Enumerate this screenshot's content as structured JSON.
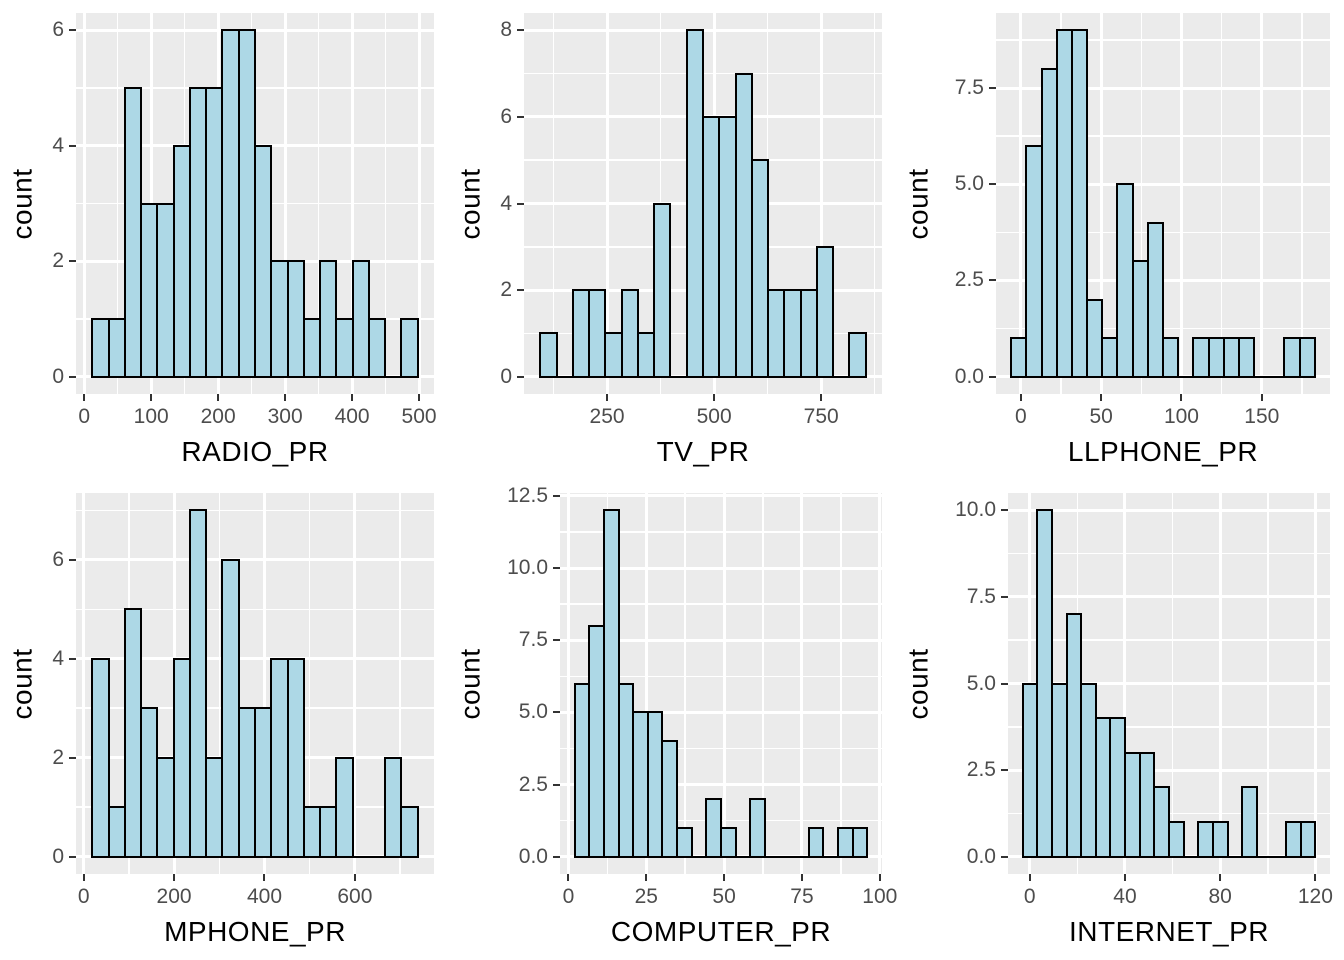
{
  "figure": {
    "ylabel": "count",
    "layout": {
      "rows": 2,
      "cols": 3
    },
    "colors": {
      "bar_fill": "#ADD8E6",
      "bar_stroke": "#000000",
      "panel_background": "#EBEBEB",
      "grid_line": "#FFFFFF",
      "tick_mark": "#333333",
      "tick_label": "#4D4D4D",
      "axis_title": "#000000",
      "page_background": "#FFFFFF"
    }
  },
  "chart_data": [
    {
      "type": "bar",
      "subtype": "histogram",
      "xlabel": "RADIO_PR",
      "ylabel": "count",
      "bin_start": 12,
      "bin_width": 24.3,
      "counts": [
        1,
        1,
        5,
        3,
        3,
        4,
        5,
        5,
        6,
        6,
        4,
        2,
        2,
        1,
        2,
        1,
        2,
        1,
        0,
        1
      ],
      "x_domain": [
        -12.3,
        522.3
      ],
      "y_domain": [
        -0.3,
        6.3
      ],
      "x_tick_values": [
        0,
        100,
        200,
        300,
        400,
        500
      ],
      "x_tick_labels": [
        "0",
        "100",
        "200",
        "300",
        "400",
        "500"
      ],
      "x_minor": [
        50,
        150,
        250,
        350,
        450
      ],
      "y_tick_values": [
        0,
        2,
        4,
        6
      ],
      "y_tick_labels": [
        "0",
        "2",
        "4",
        "6"
      ],
      "y_minor": [
        1,
        3,
        5
      ],
      "grid": true,
      "legend": false
    },
    {
      "type": "bar",
      "subtype": "histogram",
      "xlabel": "TV_PR",
      "ylabel": "count",
      "bin_start": 94,
      "bin_width": 38,
      "counts": [
        1,
        0,
        2,
        2,
        1,
        2,
        1,
        4,
        0,
        8,
        6,
        6,
        7,
        5,
        2,
        2,
        2,
        3,
        0,
        1
      ],
      "x_domain": [
        56,
        892
      ],
      "y_domain": [
        -0.4,
        8.4
      ],
      "x_tick_values": [
        250,
        500,
        750
      ],
      "x_tick_labels": [
        "250",
        "500",
        "750"
      ],
      "x_minor": [
        125,
        375,
        625,
        875
      ],
      "y_tick_values": [
        0,
        2,
        4,
        6,
        8
      ],
      "y_tick_labels": [
        "0",
        "2",
        "4",
        "6",
        "8"
      ],
      "y_minor": [
        1,
        3,
        5,
        7
      ],
      "grid": true,
      "legend": false
    },
    {
      "type": "bar",
      "subtype": "histogram",
      "xlabel": "LLPHONE_PR",
      "ylabel": "count",
      "bin_start": -6,
      "bin_width": 9.45,
      "counts": [
        1,
        6,
        8,
        9,
        9,
        2,
        1,
        5,
        3,
        4,
        1,
        0,
        1,
        1,
        1,
        1,
        0,
        0,
        1,
        1
      ],
      "x_domain": [
        -15.45,
        192.45
      ],
      "y_domain": [
        -0.45,
        9.45
      ],
      "x_tick_values": [
        0,
        50,
        100,
        150
      ],
      "x_tick_labels": [
        "0",
        "50",
        "100",
        "150"
      ],
      "x_minor": [
        25,
        75,
        125,
        175
      ],
      "y_tick_values": [
        0,
        2.5,
        5,
        7.5
      ],
      "y_tick_labels": [
        "0.0",
        "2.5",
        "5.0",
        "7.5"
      ],
      "y_minor": [
        1.25,
        3.75,
        6.25,
        8.75
      ],
      "grid": true,
      "legend": false
    },
    {
      "type": "bar",
      "subtype": "histogram",
      "xlabel": "MPHONE_PR",
      "ylabel": "count",
      "bin_start": 19,
      "bin_width": 36,
      "counts": [
        4,
        1,
        5,
        3,
        2,
        4,
        7,
        2,
        6,
        3,
        3,
        4,
        4,
        1,
        1,
        2,
        0,
        0,
        2,
        1
      ],
      "x_domain": [
        -17,
        775
      ],
      "y_domain": [
        -0.35,
        7.35
      ],
      "x_tick_values": [
        0,
        200,
        400,
        600
      ],
      "x_tick_labels": [
        "0",
        "200",
        "400",
        "600"
      ],
      "x_minor": [
        100,
        300,
        500,
        700
      ],
      "y_tick_values": [
        0,
        2,
        4,
        6
      ],
      "y_tick_labels": [
        "0",
        "2",
        "4",
        "6"
      ],
      "y_minor": [
        1,
        3,
        5,
        7
      ],
      "grid": true,
      "legend": false
    },
    {
      "type": "bar",
      "subtype": "histogram",
      "xlabel": "COMPUTER_PR",
      "ylabel": "count",
      "bin_start": 2,
      "bin_width": 4.7,
      "counts": [
        6,
        8,
        12,
        6,
        5,
        5,
        4,
        1,
        0,
        2,
        1,
        0,
        2,
        0,
        0,
        0,
        1,
        0,
        1,
        1
      ],
      "x_domain": [
        -2.7,
        100.7
      ],
      "y_domain": [
        -0.6,
        12.6
      ],
      "x_tick_values": [
        0,
        25,
        50,
        75,
        100
      ],
      "x_tick_labels": [
        "0",
        "25",
        "50",
        "75",
        "100"
      ],
      "x_minor": [
        12.5,
        37.5,
        62.5,
        87.5
      ],
      "y_tick_values": [
        0,
        2.5,
        5,
        7.5,
        10,
        12.5
      ],
      "y_tick_labels": [
        "0.0",
        "2.5",
        "5.0",
        "7.5",
        "10.0",
        "12.5"
      ],
      "y_minor": [
        1.25,
        3.75,
        6.25,
        8.75,
        11.25
      ],
      "grid": true,
      "legend": false
    },
    {
      "type": "bar",
      "subtype": "histogram",
      "xlabel": "INTERNET_PR",
      "ylabel": "count",
      "bin_start": -3,
      "bin_width": 6.15,
      "counts": [
        5,
        10,
        5,
        7,
        5,
        4,
        4,
        3,
        3,
        2,
        1,
        0,
        1,
        1,
        0,
        2,
        0,
        0,
        1,
        1
      ],
      "x_domain": [
        -9.15,
        126.15
      ],
      "y_domain": [
        -0.5,
        10.5
      ],
      "x_tick_values": [
        0,
        40,
        80,
        120
      ],
      "x_tick_labels": [
        "0",
        "40",
        "80",
        "120"
      ],
      "x_minor": [
        20,
        60,
        100
      ],
      "y_tick_values": [
        0,
        2.5,
        5,
        7.5,
        10
      ],
      "y_tick_labels": [
        "0.0",
        "2.5",
        "5.0",
        "7.5",
        "10.0"
      ],
      "y_minor": [
        1.25,
        3.75,
        6.25,
        8.75
      ],
      "grid": true,
      "legend": false
    }
  ]
}
